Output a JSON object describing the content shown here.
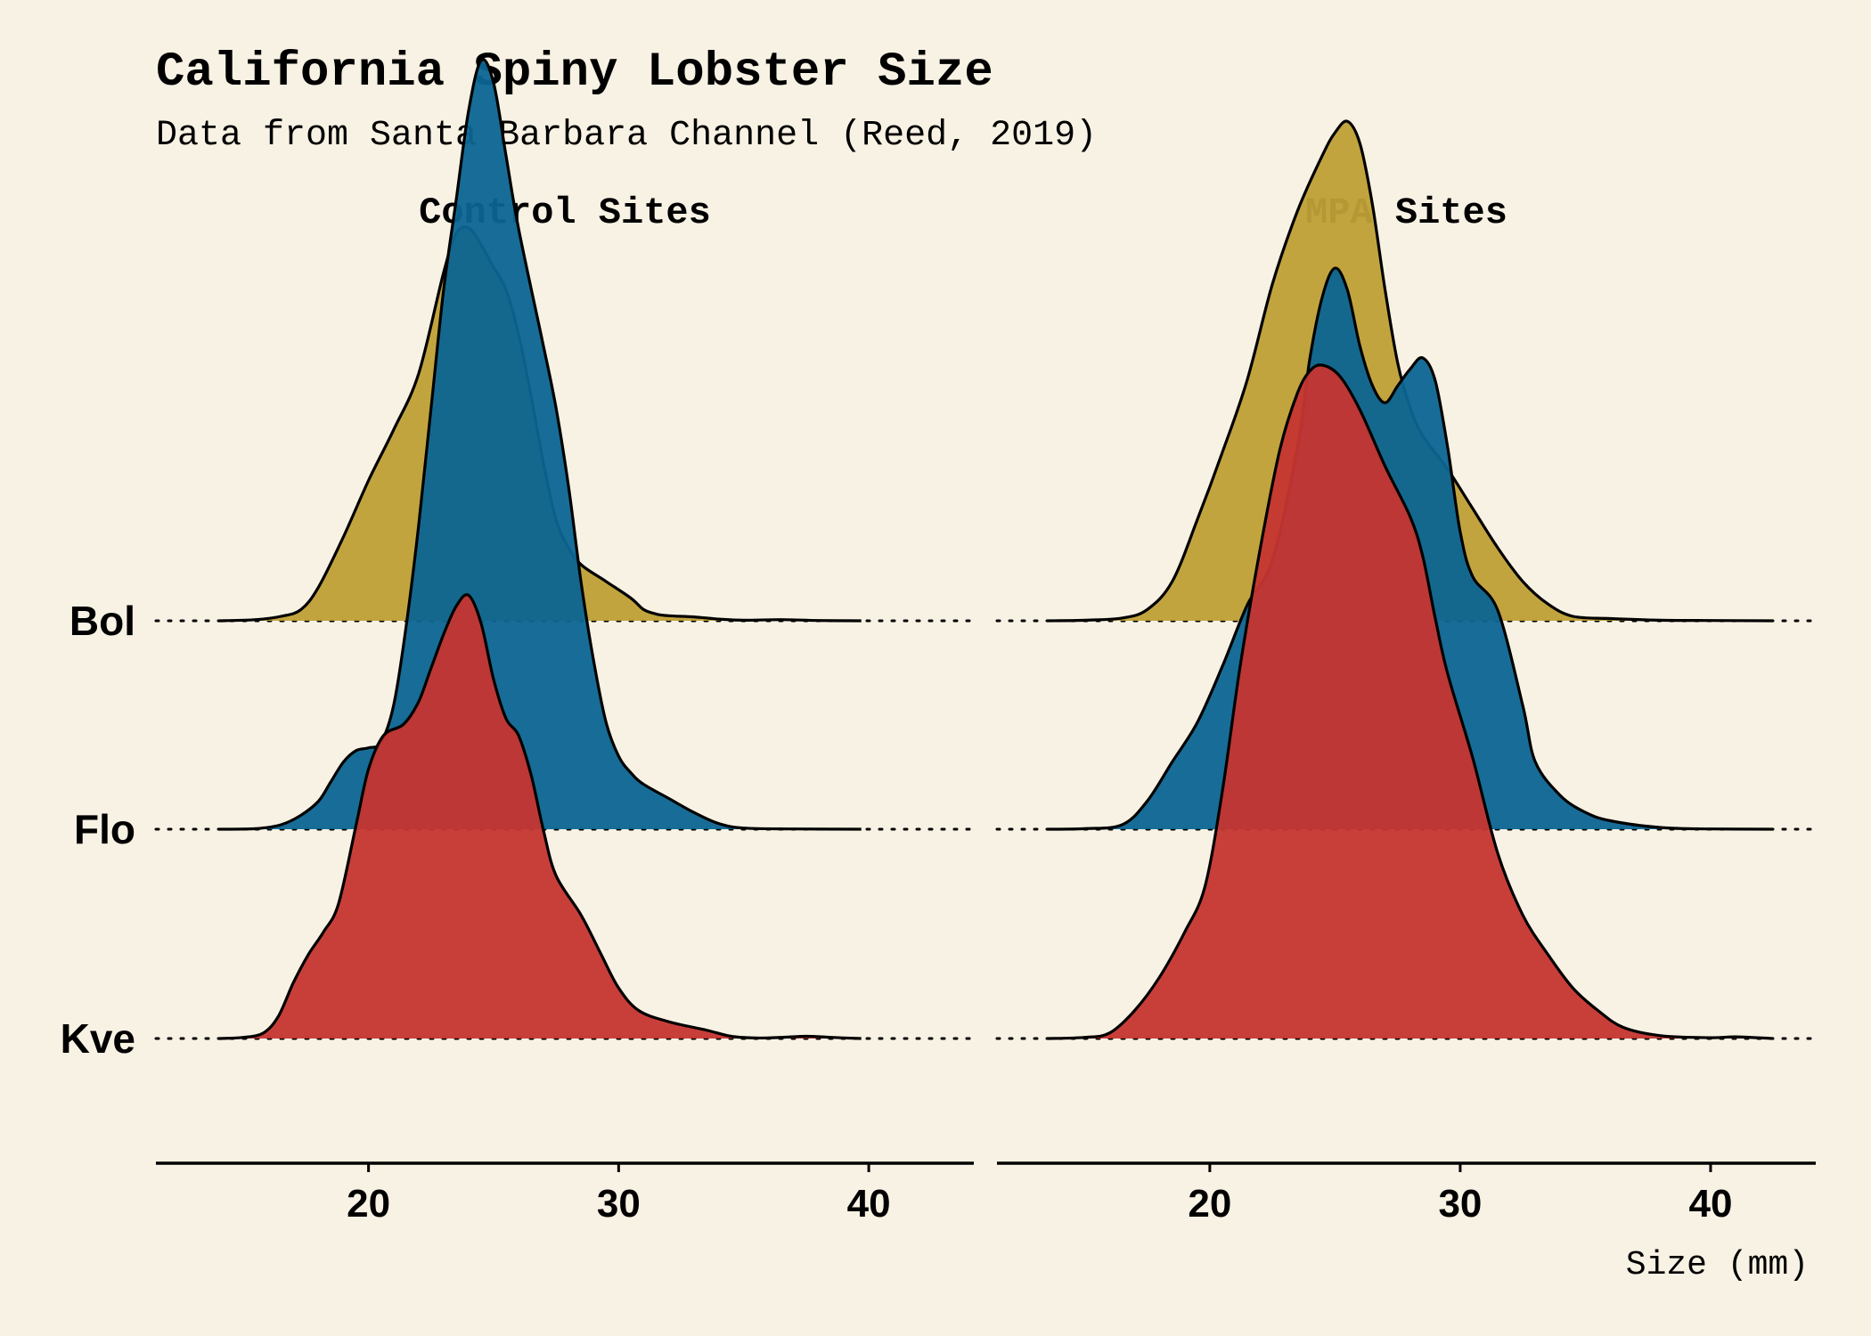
{
  "chart_data": {
    "type": "ridgeline",
    "title": "California Spiny Lobster Size",
    "subtitle": "Data from Santa Barbara Channel (Reed, 2019)",
    "xlabel": "Size (mm)",
    "ylabel": "",
    "xlim": [
      11.5,
      44.2
    ],
    "x_ticks": [
      20,
      30,
      40
    ],
    "x_tick_labels": [
      "20",
      "30",
      "40"
    ],
    "categories": [
      "Bol",
      "Flo",
      "Kve"
    ],
    "grid": "dotted baselines per category",
    "colors": {
      "Bol": "#bf9f36",
      "Flo": "#0b6592",
      "Kve": "#c53530",
      "outline": "#000000",
      "background": "#f8f2e4"
    },
    "panels": [
      {
        "name": "Control Sites",
        "series": [
          {
            "site": "Bol",
            "points": [
              [
                14,
                0
              ],
              [
                15.5,
                0.002
              ],
              [
                16.5,
                0.008
              ],
              [
                17.3,
                0.02
              ],
              [
                18,
                0.06
              ],
              [
                19,
                0.15
              ],
              [
                20,
                0.25
              ],
              [
                21,
                0.34
              ],
              [
                22,
                0.44
              ],
              [
                23,
                0.62
              ],
              [
                23.5,
                0.69
              ],
              [
                24,
                0.7
              ],
              [
                24.5,
                0.67
              ],
              [
                25,
                0.63
              ],
              [
                25.5,
                0.59
              ],
              [
                26,
                0.51
              ],
              [
                26.5,
                0.4
              ],
              [
                27,
                0.28
              ],
              [
                27.5,
                0.18
              ],
              [
                28,
                0.13
              ],
              [
                28.5,
                0.1
              ],
              [
                29.5,
                0.07
              ],
              [
                30.5,
                0.04
              ],
              [
                31,
                0.02
              ],
              [
                31.5,
                0.012
              ],
              [
                32,
                0.009
              ],
              [
                33,
                0.007
              ],
              [
                34,
                0.003
              ],
              [
                35,
                0.001
              ],
              [
                36.5,
                0.002
              ],
              [
                38,
                0.0005
              ],
              [
                39.7,
                0
              ]
            ]
          },
          {
            "site": "Flo",
            "points": [
              [
                14,
                0
              ],
              [
                15.5,
                0.001
              ],
              [
                16.5,
                0.008
              ],
              [
                17.3,
                0.025
              ],
              [
                18,
                0.05
              ],
              [
                18.5,
                0.085
              ],
              [
                19,
                0.12
              ],
              [
                19.5,
                0.14
              ],
              [
                20,
                0.145
              ],
              [
                20.5,
                0.155
              ],
              [
                21,
                0.22
              ],
              [
                21.5,
                0.36
              ],
              [
                22,
                0.54
              ],
              [
                22.5,
                0.75
              ],
              [
                23,
                0.96
              ],
              [
                23.5,
                1.12
              ],
              [
                24,
                1.28
              ],
              [
                24.5,
                1.37
              ],
              [
                25,
                1.33
              ],
              [
                25.5,
                1.2
              ],
              [
                26,
                1.07
              ],
              [
                27,
                0.86
              ],
              [
                27.5,
                0.75
              ],
              [
                28,
                0.61
              ],
              [
                28.5,
                0.44
              ],
              [
                29,
                0.3
              ],
              [
                29.5,
                0.19
              ],
              [
                30,
                0.13
              ],
              [
                30.5,
                0.1
              ],
              [
                31,
                0.08
              ],
              [
                32,
                0.055
              ],
              [
                33,
                0.03
              ],
              [
                34,
                0.01
              ],
              [
                35,
                0.002
              ],
              [
                37,
                0.0005
              ],
              [
                39.7,
                0
              ]
            ]
          },
          {
            "site": "Kve",
            "points": [
              [
                14,
                0
              ],
              [
                15,
                0.002
              ],
              [
                15.8,
                0.01
              ],
              [
                16.4,
                0.04
              ],
              [
                17,
                0.1
              ],
              [
                17.6,
                0.15
              ],
              [
                18.2,
                0.19
              ],
              [
                18.8,
                0.24
              ],
              [
                19.5,
                0.38
              ],
              [
                20,
                0.48
              ],
              [
                20.6,
                0.54
              ],
              [
                21.4,
                0.56
              ],
              [
                22,
                0.6
              ],
              [
                22.5,
                0.66
              ],
              [
                23,
                0.72
              ],
              [
                23.5,
                0.77
              ],
              [
                24,
                0.79
              ],
              [
                24.5,
                0.74
              ],
              [
                25,
                0.64
              ],
              [
                25.5,
                0.57
              ],
              [
                26,
                0.54
              ],
              [
                26.5,
                0.47
              ],
              [
                27,
                0.37
              ],
              [
                27.5,
                0.29
              ],
              [
                28.5,
                0.22
              ],
              [
                29.3,
                0.15
              ],
              [
                30,
                0.09
              ],
              [
                30.8,
                0.05
              ],
              [
                32,
                0.03
              ],
              [
                33.5,
                0.015
              ],
              [
                34.5,
                0.004
              ],
              [
                35.5,
                0.001
              ],
              [
                36.5,
                0.002
              ],
              [
                37.5,
                0.004
              ],
              [
                38.5,
                0.002
              ],
              [
                39.7,
                0
              ]
            ]
          }
        ]
      },
      {
        "name": "MPA Sites",
        "series": [
          {
            "site": "Bol",
            "points": [
              [
                13.5,
                0
              ],
              [
                15,
                0.001
              ],
              [
                16.5,
                0.005
              ],
              [
                17.5,
                0.02
              ],
              [
                18.5,
                0.07
              ],
              [
                19.5,
                0.18
              ],
              [
                20.5,
                0.3
              ],
              [
                21.5,
                0.43
              ],
              [
                22.5,
                0.6
              ],
              [
                23.5,
                0.73
              ],
              [
                24.5,
                0.83
              ],
              [
                25,
                0.87
              ],
              [
                25.5,
                0.89
              ],
              [
                26,
                0.85
              ],
              [
                26.5,
                0.74
              ],
              [
                27,
                0.59
              ],
              [
                27.5,
                0.46
              ],
              [
                28,
                0.38
              ],
              [
                28.5,
                0.33
              ],
              [
                29.5,
                0.27
              ],
              [
                30.5,
                0.2
              ],
              [
                31.5,
                0.13
              ],
              [
                32.5,
                0.07
              ],
              [
                33.5,
                0.03
              ],
              [
                34.5,
                0.008
              ],
              [
                36,
                0.004
              ],
              [
                38,
                0.001
              ],
              [
                40,
                0.0005
              ],
              [
                42.5,
                0
              ]
            ]
          },
          {
            "site": "Flo",
            "points": [
              [
                13.5,
                0
              ],
              [
                15,
                0.001
              ],
              [
                16.5,
                0.008
              ],
              [
                17.5,
                0.05
              ],
              [
                18.5,
                0.12
              ],
              [
                19.5,
                0.19
              ],
              [
                20.5,
                0.29
              ],
              [
                21.5,
                0.4
              ],
              [
                22.5,
                0.48
              ],
              [
                23.5,
                0.68
              ],
              [
                24,
                0.84
              ],
              [
                24.5,
                0.95
              ],
              [
                25,
                1.0
              ],
              [
                25.5,
                0.96
              ],
              [
                26,
                0.86
              ],
              [
                26.5,
                0.79
              ],
              [
                27,
                0.76
              ],
              [
                27.5,
                0.79
              ],
              [
                28,
                0.82
              ],
              [
                28.5,
                0.84
              ],
              [
                29,
                0.8
              ],
              [
                29.5,
                0.68
              ],
              [
                30,
                0.53
              ],
              [
                30.5,
                0.45
              ],
              [
                31.5,
                0.39
              ],
              [
                32.5,
                0.22
              ],
              [
                33,
                0.12
              ],
              [
                34,
                0.06
              ],
              [
                35,
                0.03
              ],
              [
                36,
                0.015
              ],
              [
                38,
                0.003
              ],
              [
                40,
                0.0005
              ],
              [
                42.5,
                0
              ]
            ]
          },
          {
            "site": "Kve",
            "points": [
              [
                13.5,
                0
              ],
              [
                15,
                0.002
              ],
              [
                16,
                0.01
              ],
              [
                17,
                0.05
              ],
              [
                18,
                0.11
              ],
              [
                19,
                0.19
              ],
              [
                19.8,
                0.27
              ],
              [
                20.5,
                0.44
              ],
              [
                21.2,
                0.66
              ],
              [
                22,
                0.87
              ],
              [
                22.8,
                1.05
              ],
              [
                23.5,
                1.15
              ],
              [
                24,
                1.19
              ],
              [
                24.5,
                1.2
              ],
              [
                25.2,
                1.18
              ],
              [
                26,
                1.12
              ],
              [
                27,
                1.02
              ],
              [
                28,
                0.93
              ],
              [
                28.5,
                0.86
              ],
              [
                29,
                0.75
              ],
              [
                29.5,
                0.65
              ],
              [
                30.5,
                0.5
              ],
              [
                31.5,
                0.33
              ],
              [
                32.5,
                0.22
              ],
              [
                33.5,
                0.15
              ],
              [
                34.5,
                0.09
              ],
              [
                35.5,
                0.05
              ],
              [
                36.5,
                0.02
              ],
              [
                38,
                0.005
              ],
              [
                40,
                0.0015
              ],
              [
                41,
                0.003
              ],
              [
                42.5,
                0
              ]
            ]
          }
        ]
      }
    ]
  }
}
